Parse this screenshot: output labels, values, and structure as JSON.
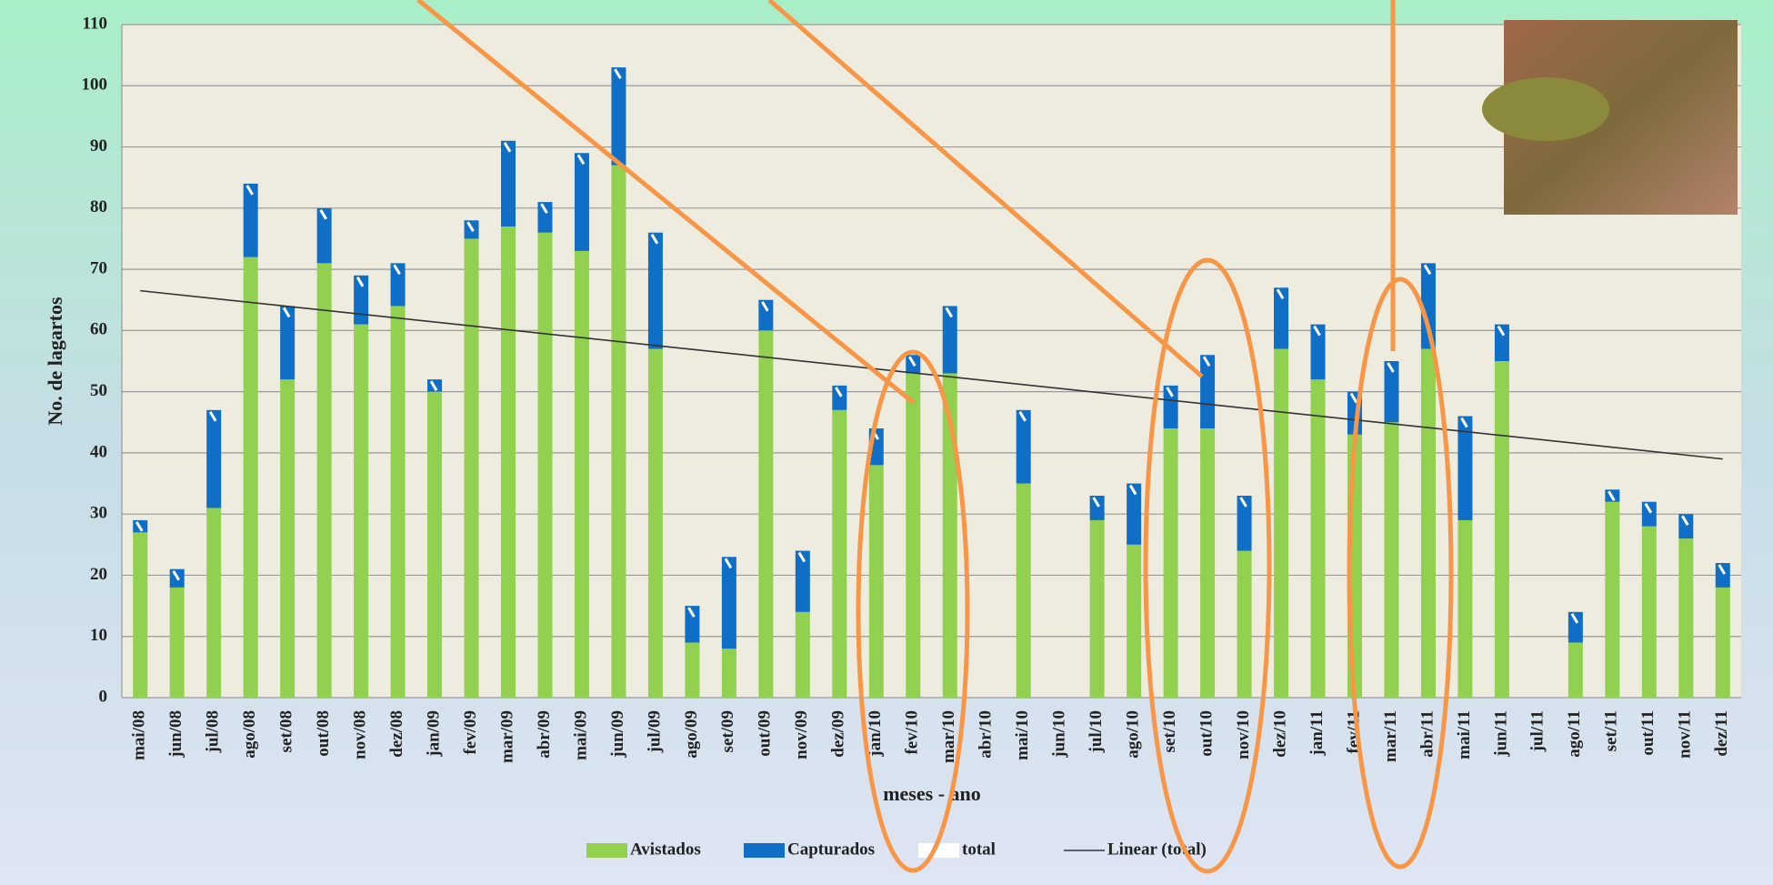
{
  "chart_data": {
    "type": "bar",
    "stacked": true,
    "x_label": "meses - ano",
    "y_label": "No. de lagartos",
    "categories": [
      "mai/08",
      "jun/08",
      "jul/08",
      "ago/08",
      "set/08",
      "out/08",
      "nov/08",
      "dez/08",
      "jan/09",
      "fev/09",
      "mar/09",
      "abr/09",
      "mai/09",
      "jun/09",
      "jul/09",
      "ago/09",
      "set/09",
      "out/09",
      "nov/09",
      "dez/09",
      "jan/10",
      "fev/10",
      "mar/10",
      "abr/10",
      "mai/10",
      "jun/10",
      "jul/10",
      "ago/10",
      "set/10",
      "out/10",
      "nov/10",
      "dez/10",
      "jan/11",
      "fev/11",
      "mar/11",
      "abr/11",
      "mai/11",
      "jun/11",
      "jul/11",
      "ago/11",
      "set/11",
      "out/11",
      "nov/11",
      "dez/11"
    ],
    "series": [
      {
        "name": "Avistados",
        "color": "#92d050",
        "values": [
          27,
          18,
          31,
          72,
          52,
          71,
          61,
          64,
          50,
          75,
          77,
          76,
          73,
          87,
          57,
          9,
          8,
          60,
          14,
          47,
          38,
          53,
          53,
          0,
          35,
          0,
          29,
          25,
          44,
          44,
          24,
          57,
          52,
          43,
          45,
          57,
          29,
          55,
          0,
          9,
          32,
          28,
          26,
          18
        ]
      },
      {
        "name": "Capturados",
        "color": "#0f6fc6",
        "values": [
          2,
          3,
          16,
          12,
          12,
          9,
          8,
          7,
          2,
          3,
          14,
          5,
          16,
          16,
          19,
          6,
          15,
          5,
          10,
          4,
          6,
          3,
          11,
          0,
          12,
          0,
          4,
          10,
          7,
          12,
          9,
          10,
          9,
          7,
          10,
          14,
          17,
          6,
          0,
          5,
          2,
          4,
          4,
          4
        ]
      },
      {
        "name": "total",
        "color": "#ffffff",
        "values": [
          29,
          21,
          47,
          84,
          64,
          80,
          69,
          71,
          52,
          78,
          91,
          81,
          89,
          103,
          76,
          15,
          23,
          65,
          24,
          51,
          44,
          56,
          64,
          0,
          47,
          0,
          33,
          35,
          51,
          56,
          33,
          67,
          61,
          50,
          55,
          71,
          46,
          61,
          0,
          14,
          34,
          32,
          30,
          22
        ]
      }
    ],
    "trendline": {
      "name": "Linear (total)",
      "color": "#333333",
      "start": 66.5,
      "end": 39
    },
    "ylim": [
      0,
      110
    ],
    "yticks": [
      0,
      10,
      20,
      30,
      40,
      50,
      60,
      70,
      80,
      90,
      100,
      110
    ],
    "grid": true,
    "legend": "bottom"
  }
}
